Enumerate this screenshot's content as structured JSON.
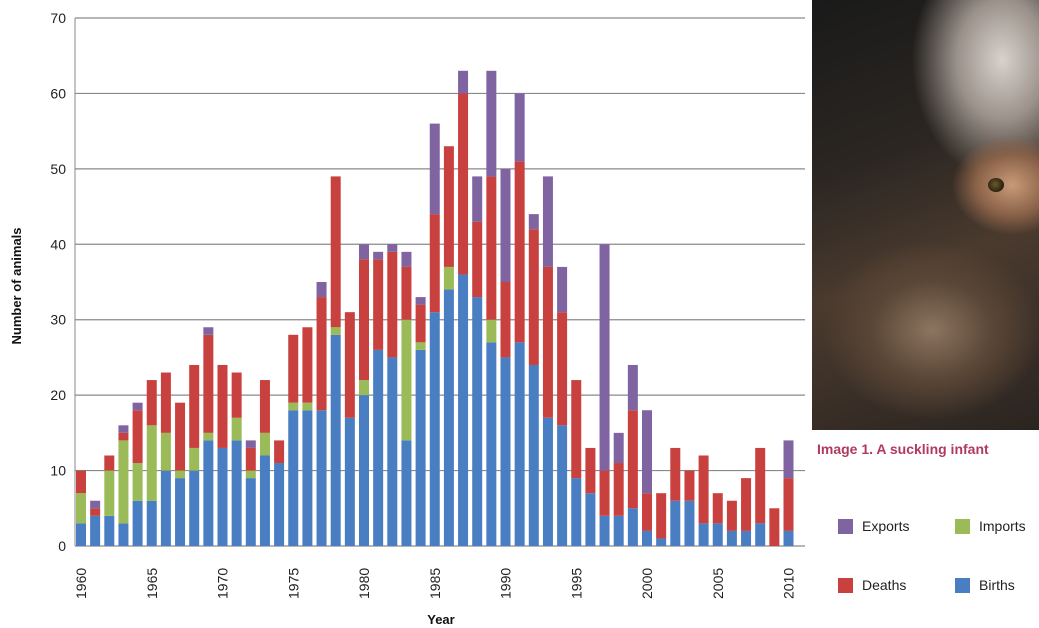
{
  "chart_data": {
    "type": "bar",
    "stacked": true,
    "xlabel": "Year",
    "ylabel": "Number of animals",
    "ylim": [
      0,
      70
    ],
    "yticks": [
      0,
      10,
      20,
      30,
      40,
      50,
      60,
      70
    ],
    "xticks": [
      1960,
      1965,
      1970,
      1975,
      1980,
      1985,
      1990,
      1995,
      2000,
      2005,
      2010
    ],
    "grid": "horizontal",
    "legend_position": "bottom-right",
    "x": [
      1960,
      1961,
      1962,
      1963,
      1964,
      1965,
      1966,
      1967,
      1968,
      1969,
      1970,
      1971,
      1972,
      1973,
      1974,
      1975,
      1976,
      1977,
      1978,
      1979,
      1980,
      1981,
      1982,
      1983,
      1984,
      1985,
      1986,
      1987,
      1988,
      1989,
      1990,
      1991,
      1992,
      1993,
      1994,
      1995,
      1996,
      1997,
      1998,
      1999,
      2000,
      2001,
      2002,
      2003,
      2004,
      2005,
      2006,
      2007,
      2008,
      2009,
      2010
    ],
    "series": [
      {
        "name": "Births",
        "color": "#4a7ec2",
        "values": [
          3,
          4,
          4,
          3,
          6,
          6,
          10,
          9,
          10,
          14,
          13,
          14,
          9,
          12,
          11,
          18,
          18,
          18,
          28,
          17,
          20,
          26,
          25,
          14,
          26,
          31,
          34,
          36,
          33,
          27,
          25,
          27,
          24,
          17,
          16,
          9,
          7,
          4,
          4,
          5,
          2,
          1,
          6,
          6,
          3,
          3,
          2,
          2,
          3,
          0,
          2
        ]
      },
      {
        "name": "Imports",
        "color": "#9bbb59",
        "values": [
          4,
          0,
          6,
          11,
          5,
          10,
          5,
          1,
          3,
          1,
          0,
          3,
          1,
          3,
          0,
          1,
          1,
          0,
          1,
          0,
          2,
          0,
          0,
          16,
          1,
          0,
          3,
          0,
          0,
          3,
          0,
          0,
          0,
          0,
          0,
          0,
          0,
          0,
          0,
          0,
          0,
          0,
          0,
          0,
          0,
          0,
          0,
          0,
          0,
          0,
          0
        ]
      },
      {
        "name": "Deaths",
        "color": "#c9413e",
        "values": [
          3,
          1,
          2,
          1,
          7,
          6,
          8,
          9,
          11,
          13,
          11,
          6,
          3,
          7,
          3,
          9,
          10,
          15,
          20,
          14,
          16,
          12,
          14,
          7,
          5,
          13,
          16,
          24,
          10,
          19,
          10,
          24,
          18,
          20,
          15,
          13,
          6,
          6,
          7,
          13,
          5,
          6,
          7,
          4,
          9,
          4,
          4,
          7,
          10,
          5,
          7
        ]
      },
      {
        "name": "Exports",
        "color": "#8064a2",
        "values": [
          0,
          1,
          0,
          1,
          1,
          0,
          0,
          0,
          0,
          1,
          0,
          0,
          1,
          0,
          0,
          0,
          0,
          2,
          0,
          0,
          2,
          1,
          1,
          2,
          1,
          12,
          0,
          3,
          6,
          14,
          15,
          9,
          2,
          12,
          6,
          0,
          0,
          30,
          4,
          6,
          11,
          0,
          0,
          0,
          0,
          0,
          0,
          0,
          0,
          0,
          5
        ]
      }
    ]
  },
  "legend": {
    "exports": {
      "label": "Exports",
      "color": "#8064a2"
    },
    "imports": {
      "label": "Imports",
      "color": "#9bbb59"
    },
    "deaths": {
      "label": "Deaths",
      "color": "#c9413e"
    },
    "births": {
      "label": "Births",
      "color": "#4a7ec2"
    }
  },
  "photo": {
    "caption": "Image 1. A suckling infant"
  }
}
